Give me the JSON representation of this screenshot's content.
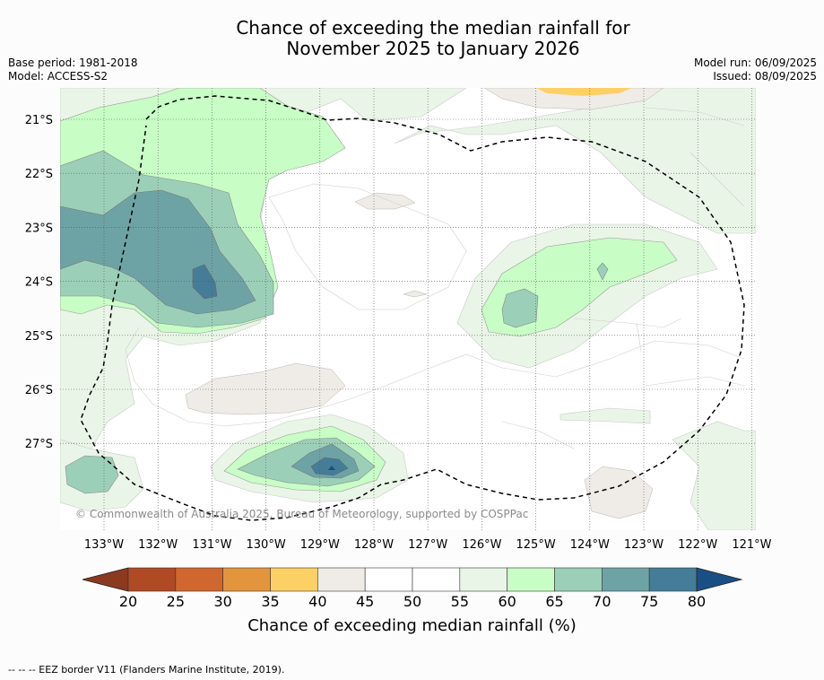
{
  "title_line1": "Chance of exceeding the median rainfall for",
  "title_line2": "November 2025 to January 2026",
  "base_period": "Base period: 1981-2018",
  "model": "Model: ACCESS-S2",
  "model_run": "Model run: 06/09/2025",
  "issued": "Issued: 08/09/2025",
  "copyright": "© Commonwealth of Australia 2025, Bureau of Meteorology, supported by COSPPac",
  "lon_labels": [
    "133°W",
    "132°W",
    "131°W",
    "130°W",
    "129°W",
    "128°W",
    "127°W",
    "126°W",
    "125°W",
    "124°W",
    "123°W",
    "122°W",
    "121°W"
  ],
  "lat_labels": [
    "21°S",
    "22°S",
    "23°S",
    "24°S",
    "25°S",
    "26°S",
    "27°S"
  ],
  "colorbar": {
    "label": "Chance of exceeding median rainfall (%)",
    "ticks": [
      "20",
      "25",
      "30",
      "35",
      "40",
      "45",
      "50",
      "55",
      "60",
      "65",
      "70",
      "75",
      "80"
    ],
    "colors": [
      "#8b3a1f",
      "#b04a24",
      "#d0672f",
      "#e3953e",
      "#fdd065",
      "#efebe6",
      "#ffffff",
      "#ffffff",
      "#e9f5e7",
      "#c8fdc6",
      "#9ccfb8",
      "#6ea3a5",
      "#457d98",
      "#1a4f85"
    ]
  },
  "footer": "--  --  -- EEZ border V11 (Flanders Marine Institute, 2019)."
}
